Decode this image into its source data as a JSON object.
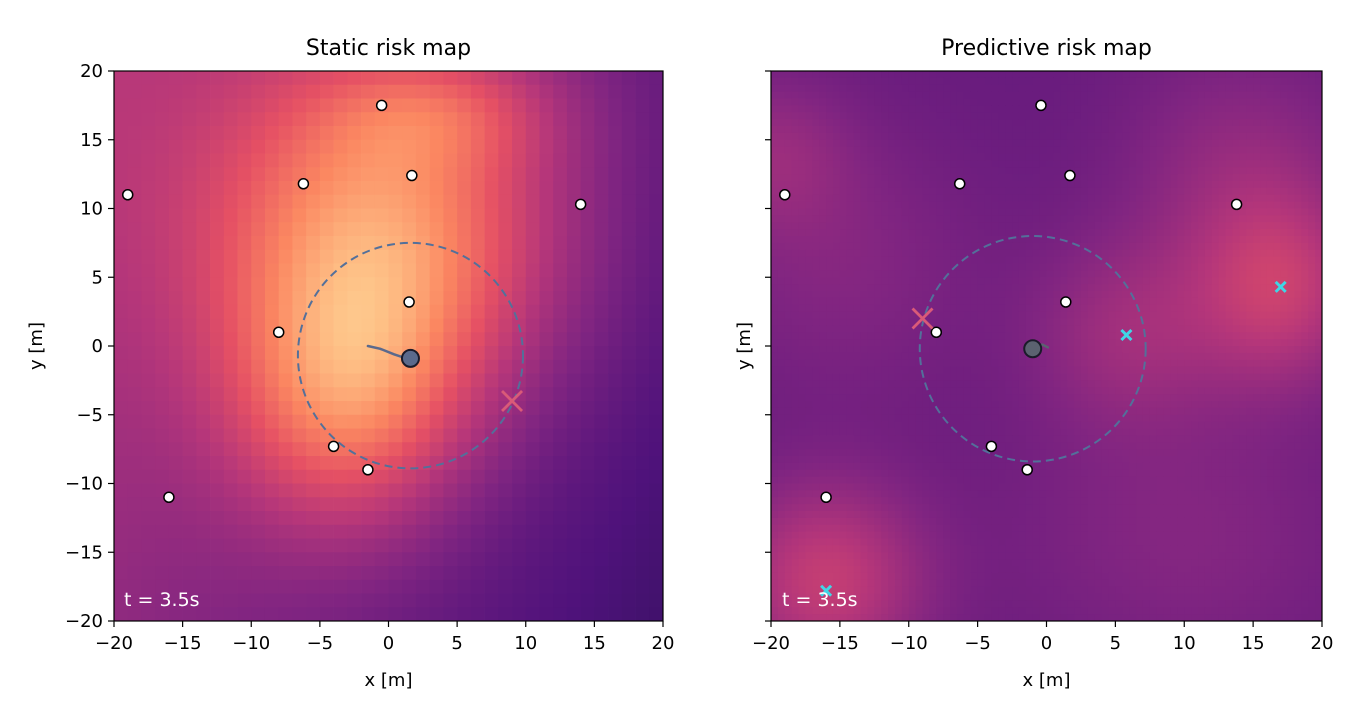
{
  "figure": {
    "colors": {
      "axes": "#000000",
      "background": "#ffffff",
      "time_text": "#ffffff"
    },
    "colormap": "magma",
    "heatmap_value_range": [
      0,
      1
    ]
  },
  "chart_data": [
    {
      "type": "heatmap",
      "title": "Static risk map",
      "xlabel": "x [m]",
      "ylabel": "y [m]",
      "xlim": [
        -20,
        20
      ],
      "ylim": [
        -20,
        20
      ],
      "xticks": [
        -20,
        -15,
        -10,
        -5,
        0,
        5,
        10,
        15,
        20
      ],
      "yticks": [
        -20,
        -15,
        -10,
        -5,
        0,
        5,
        10,
        15,
        20
      ],
      "xtick_labels": [
        "−20",
        "−15",
        "−10",
        "−5",
        "0",
        "5",
        "10",
        "15",
        "20"
      ],
      "ytick_labels": [
        "−20",
        "−15",
        "−10",
        "−5",
        "0",
        "5",
        "10",
        "15",
        "20"
      ],
      "show_ytick_labels": true,
      "grid": false,
      "time_label": "t = 3.5s",
      "heatmap": {
        "grid_size": 40,
        "style": "pixelated",
        "base": 0.22,
        "gradient": [
          -0.007,
          0.003
        ],
        "blobs": [
          {
            "x": 0,
            "y": 8,
            "sx": 9,
            "sy": 9,
            "amp": 0.58
          },
          {
            "x": -3,
            "y": -4,
            "sx": 6,
            "sy": 7,
            "amp": 0.42
          },
          {
            "x": 4,
            "y": 17,
            "sx": 6,
            "sy": 3,
            "amp": 0.18
          }
        ]
      },
      "pedestrians": [
        {
          "x": -0.5,
          "y": 17.5
        },
        {
          "x": -6.2,
          "y": 11.8
        },
        {
          "x": 1.7,
          "y": 12.4
        },
        {
          "x": -19.0,
          "y": 11.0
        },
        {
          "x": 14.0,
          "y": 10.3
        },
        {
          "x": 1.5,
          "y": 3.2
        },
        {
          "x": -8.0,
          "y": 1.0
        },
        {
          "x": -4.0,
          "y": -7.3
        },
        {
          "x": -1.5,
          "y": -9.0
        },
        {
          "x": -16.0,
          "y": -11.0
        }
      ],
      "robot": {
        "x": 1.6,
        "y": -0.9,
        "color": "#5b6a8c"
      },
      "robot_path": [
        [
          -1.5,
          0.0
        ],
        [
          -0.6,
          -0.2
        ],
        [
          0.4,
          -0.6
        ],
        [
          1.0,
          -0.8
        ],
        [
          1.6,
          -0.9
        ]
      ],
      "sensing_circle": {
        "cx": 1.6,
        "cy": -0.7,
        "r": 8.2,
        "color": "#53709a"
      },
      "goal": {
        "x": 9.0,
        "y": -4.0,
        "color": "#d95a78"
      },
      "predicted_markers": []
    },
    {
      "type": "heatmap",
      "title": "Predictive risk map",
      "xlabel": "x [m]",
      "ylabel": "y [m]",
      "xlim": [
        -20,
        20
      ],
      "ylim": [
        -20,
        20
      ],
      "xticks": [
        -20,
        -15,
        -10,
        -5,
        0,
        5,
        10,
        15,
        20
      ],
      "yticks": [
        -20,
        -15,
        -10,
        -5,
        0,
        5,
        10,
        15,
        20
      ],
      "xtick_labels": [
        "−20",
        "−15",
        "−10",
        "−5",
        "0",
        "5",
        "10",
        "15",
        "20"
      ],
      "ytick_labels": [],
      "show_ytick_labels": false,
      "grid": false,
      "time_label": "t = 3.5s",
      "heatmap": {
        "grid_size": 80,
        "style": "smooth",
        "base": 0.16,
        "gradient": [
          0.0,
          0.0
        ],
        "blobs": [
          {
            "x": 17,
            "y": 4,
            "sx": 4.5,
            "sy": 5,
            "amp": 0.3
          },
          {
            "x": 6,
            "y": 1,
            "sx": 5,
            "sy": 5,
            "amp": 0.18
          },
          {
            "x": -16,
            "y": -17,
            "sx": 5,
            "sy": 5,
            "amp": 0.32
          },
          {
            "x": 14,
            "y": 13,
            "sx": 6,
            "sy": 6,
            "amp": 0.14
          },
          {
            "x": -15,
            "y": 6,
            "sx": 7,
            "sy": 7,
            "amp": 0.1
          },
          {
            "x": 10,
            "y": -14,
            "sx": 9,
            "sy": 7,
            "amp": 0.1
          },
          {
            "x": -20,
            "y": 14,
            "sx": 4,
            "sy": 4,
            "amp": 0.14
          }
        ]
      },
      "pedestrians": [
        {
          "x": -0.4,
          "y": 17.5
        },
        {
          "x": -6.3,
          "y": 11.8
        },
        {
          "x": 1.7,
          "y": 12.4
        },
        {
          "x": -19.0,
          "y": 11.0
        },
        {
          "x": 13.8,
          "y": 10.3
        },
        {
          "x": 1.4,
          "y": 3.2
        },
        {
          "x": -8.0,
          "y": 1.0
        },
        {
          "x": -4.0,
          "y": -7.3
        },
        {
          "x": -1.4,
          "y": -9.0
        },
        {
          "x": -16.0,
          "y": -11.0
        }
      ],
      "robot": {
        "x": -1.0,
        "y": -0.2,
        "color": "#5b6270"
      },
      "robot_path": [
        [
          -1.0,
          -0.2
        ],
        [
          -0.3,
          0.1
        ],
        [
          0.1,
          -0.1
        ]
      ],
      "sensing_circle": {
        "cx": -1.0,
        "cy": -0.2,
        "r": 8.2,
        "color": "#53709a"
      },
      "goal": {
        "x": -9.0,
        "y": 2.0,
        "color": "#d95a78"
      },
      "predicted_markers": [
        {
          "x": 17.0,
          "y": 4.3,
          "color": "#3fd6e6"
        },
        {
          "x": 5.8,
          "y": 0.8,
          "color": "#3fd6e6"
        },
        {
          "x": -16.0,
          "y": -17.8,
          "color": "#3fd6e6"
        }
      ]
    }
  ]
}
